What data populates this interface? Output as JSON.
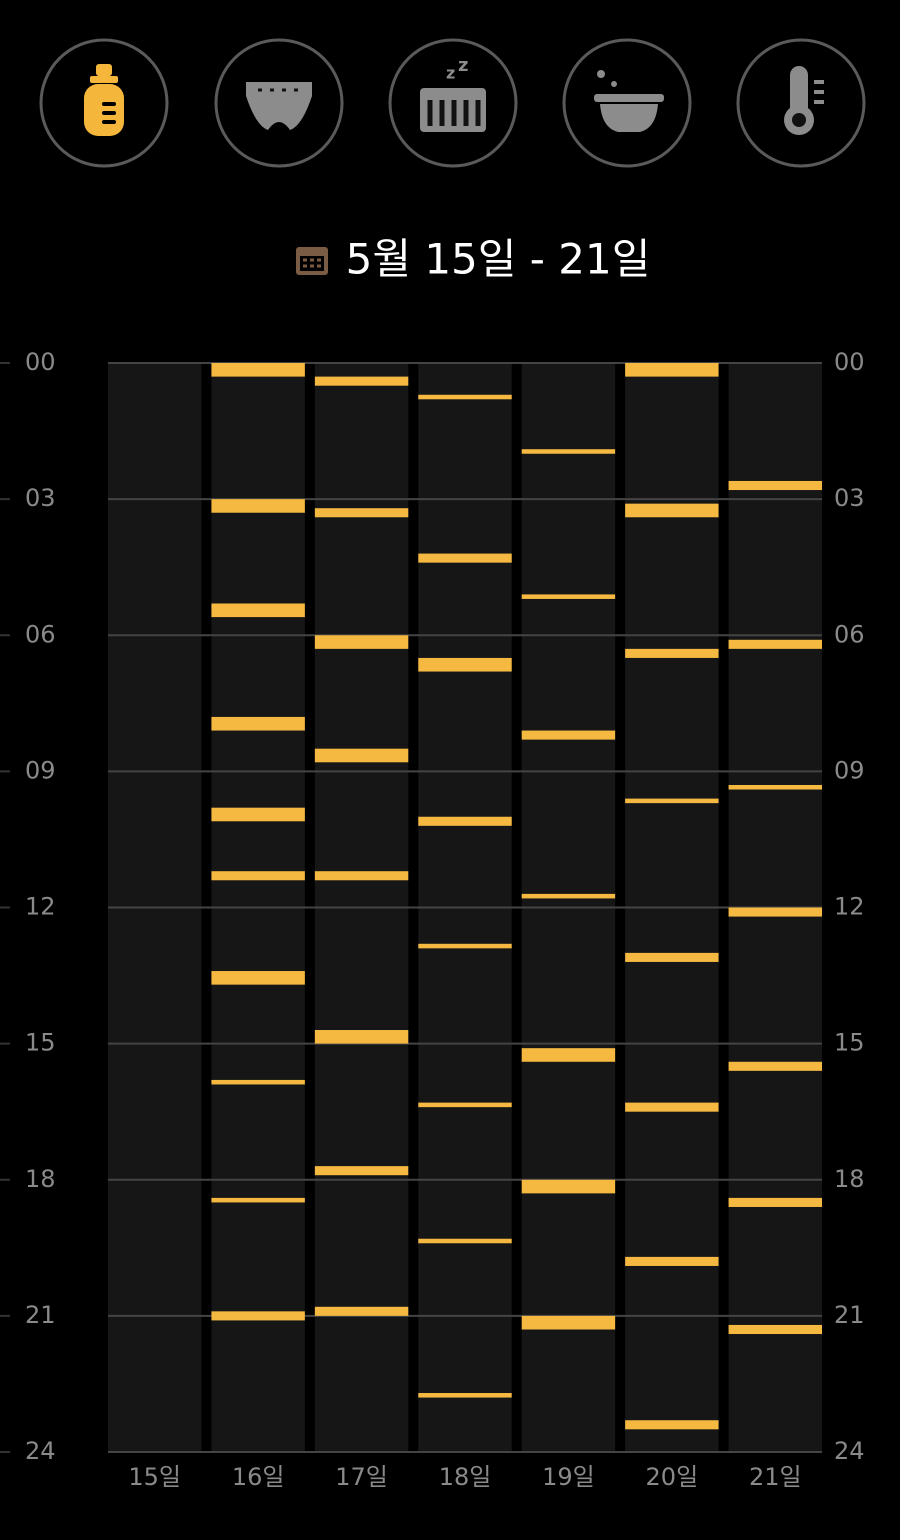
{
  "chart_data": {
    "type": "timeline",
    "title": "5월 15일 - 21일",
    "categories": [
      "15일",
      "16일",
      "17일",
      "18일",
      "19일",
      "20일",
      "21일"
    ],
    "values": [
      [],
      [
        [
          0,
          0.3
        ],
        [
          3.0,
          3.3
        ],
        [
          5.3,
          5.6
        ],
        [
          7.8,
          8.1
        ],
        [
          9.8,
          10.1
        ],
        [
          11.2,
          11.4
        ],
        [
          13.4,
          13.7
        ],
        [
          15.8,
          15.9
        ],
        [
          18.4,
          18.5
        ],
        [
          20.9,
          21.1
        ]
      ],
      [
        [
          0.3,
          0.5
        ],
        [
          3.2,
          3.4
        ],
        [
          6.0,
          6.3
        ],
        [
          8.5,
          8.8
        ],
        [
          11.2,
          11.4
        ],
        [
          14.7,
          15.0
        ],
        [
          17.7,
          17.9
        ],
        [
          20.8,
          21.0
        ]
      ],
      [
        [
          0.7,
          0.8
        ],
        [
          4.2,
          4.4
        ],
        [
          6.5,
          6.8
        ],
        [
          10.0,
          10.2
        ],
        [
          12.8,
          12.9
        ],
        [
          16.3,
          16.4
        ],
        [
          19.3,
          19.4
        ],
        [
          22.7,
          22.8
        ]
      ],
      [
        [
          1.9,
          2.0
        ],
        [
          5.1,
          5.2
        ],
        [
          8.1,
          8.3
        ],
        [
          11.7,
          11.8
        ],
        [
          15.1,
          15.4
        ],
        [
          18.0,
          18.3
        ],
        [
          21.0,
          21.3
        ]
      ],
      [
        [
          0,
          0.3
        ],
        [
          3.1,
          3.4
        ],
        [
          6.3,
          6.5
        ],
        [
          9.6,
          9.7
        ],
        [
          13.0,
          13.2
        ],
        [
          16.3,
          16.5
        ],
        [
          19.7,
          19.9
        ],
        [
          23.3,
          23.5
        ]
      ],
      [
        [
          2.6,
          2.8
        ],
        [
          6.1,
          6.3
        ],
        [
          9.3,
          9.4
        ],
        [
          12.0,
          12.2
        ],
        [
          15.4,
          15.6
        ],
        [
          18.4,
          18.6
        ],
        [
          21.2,
          21.4
        ]
      ]
    ],
    "color": "#f5b942",
    "ylim": [
      0,
      24
    ],
    "yticks": [
      {
        "value": 0,
        "label": "00"
      },
      {
        "value": 3,
        "label": "03"
      },
      {
        "value": 6,
        "label": "06"
      },
      {
        "value": 9,
        "label": "09"
      },
      12,
      15,
      18,
      {
        "value": 21,
        "label": "21"
      },
      24
    ],
    "grid": true
  }
}
